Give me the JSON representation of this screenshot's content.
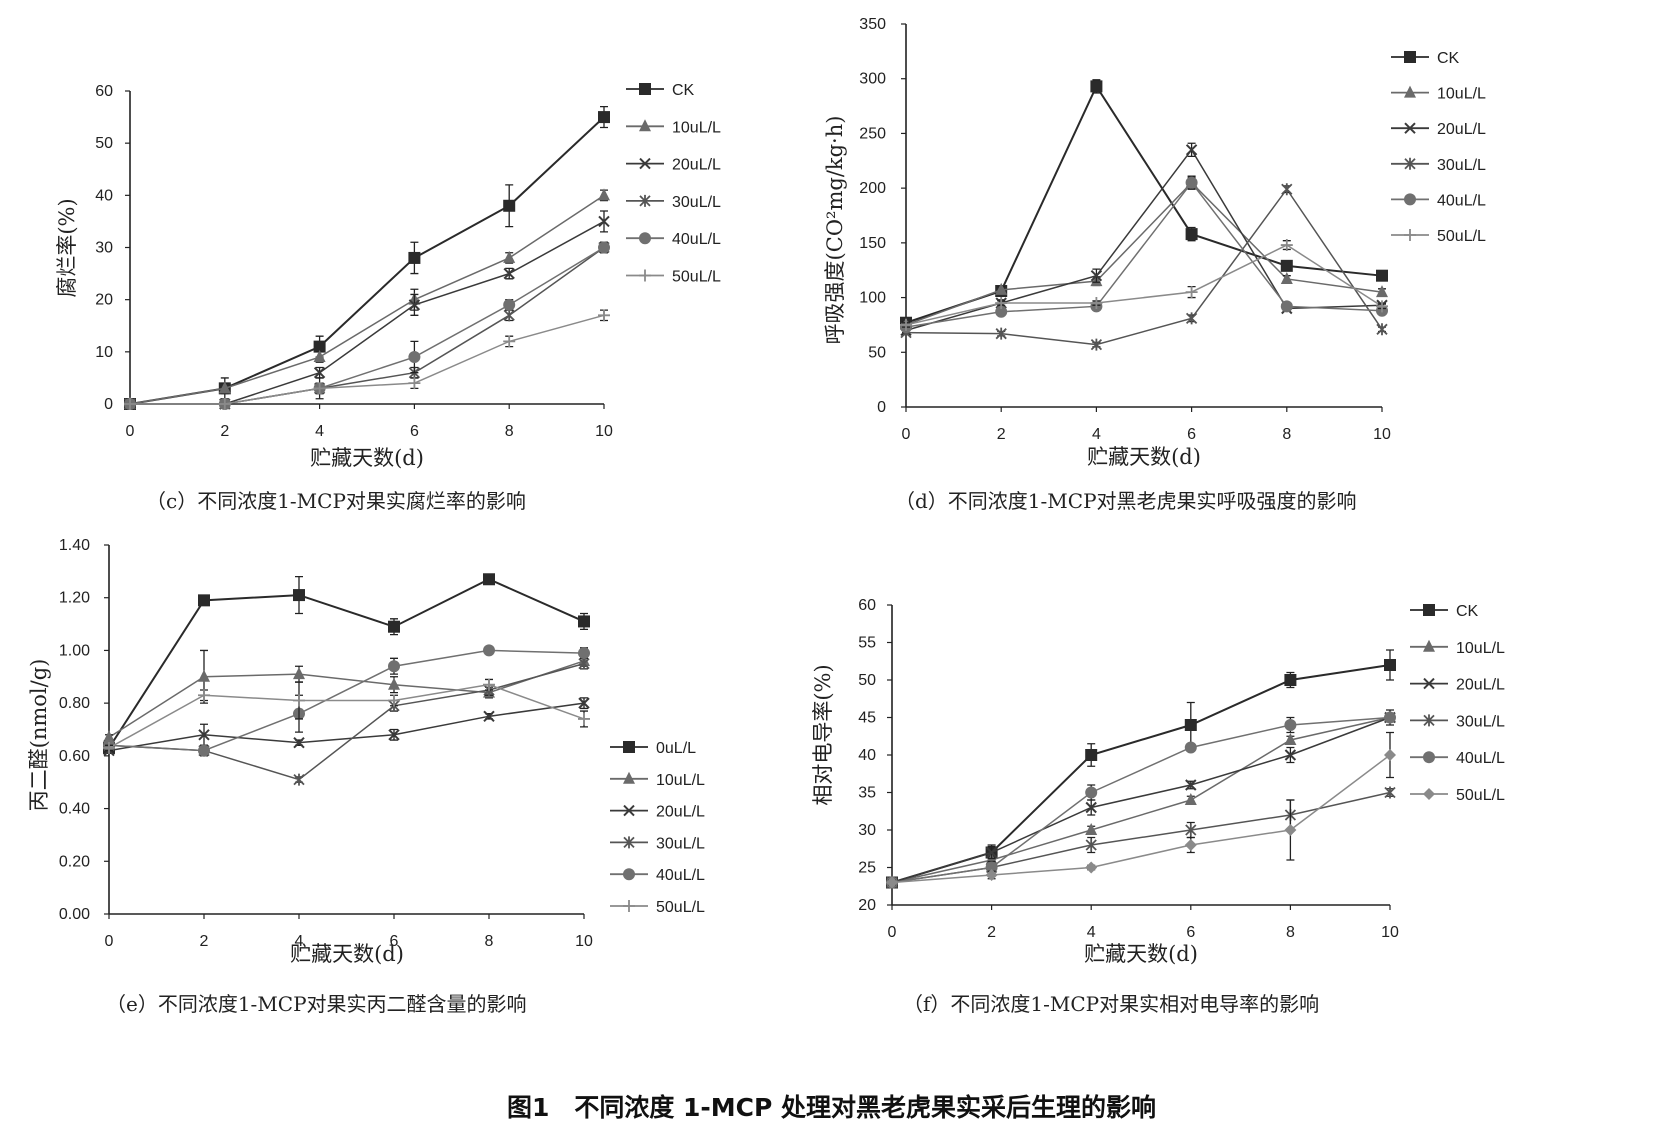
{
  "figure_caption": "图1　不同浓度 1-MCP 处理对黑老虎果实采后生理的影响",
  "panels": [
    {
      "id": "c",
      "caption": "（c）不同浓度1-MCP对果实腐烂率的影响"
    },
    {
      "id": "d",
      "caption": "（d）不同浓度1-MCP对黑老虎果实呼吸强度的影响"
    },
    {
      "id": "e",
      "caption": "（e）不同浓度1-MCP对果实丙二醛含量的影响"
    },
    {
      "id": "f",
      "caption": "（f）不同浓度1-MCP对果实相对电导率的影响"
    }
  ],
  "colors": {
    "CK": "#2a2a2a",
    "10uL/L": "#6a6a6a",
    "20uL/L": "#3a3a3a",
    "30uL/L": "#555555",
    "40uL/L": "#707070",
    "50uL/L": "#8a8a8a"
  },
  "chart_data": [
    {
      "id": "c",
      "type": "line",
      "xlabel": "贮藏天数(d)",
      "ylabel": "腐烂率(%)",
      "x": [
        0,
        2,
        4,
        6,
        8,
        10
      ],
      "xlim": [
        0,
        10
      ],
      "ylim": [
        0,
        60
      ],
      "xticks": [
        "0",
        "2",
        "4",
        "6",
        "8",
        "10"
      ],
      "yticks": [
        "0",
        "10",
        "20",
        "30",
        "40",
        "50",
        "60"
      ],
      "grid": false,
      "legend": "right",
      "series": [
        {
          "name": "CK",
          "marker": "square",
          "values": [
            0,
            3,
            11,
            28,
            38,
            55
          ],
          "err": [
            0,
            2,
            2,
            3,
            4,
            2
          ]
        },
        {
          "name": "10uL/L",
          "marker": "triangle",
          "values": [
            0,
            3,
            9,
            20,
            28,
            40
          ],
          "err": [
            0,
            1,
            1,
            2,
            1,
            1
          ]
        },
        {
          "name": "20uL/L",
          "marker": "x",
          "values": [
            0,
            0,
            6,
            19,
            25,
            35
          ],
          "err": [
            0,
            0,
            1,
            2,
            1,
            2
          ]
        },
        {
          "name": "30uL/L",
          "marker": "star",
          "values": [
            0,
            0,
            3,
            6,
            17,
            30
          ],
          "err": [
            0,
            0,
            1,
            1,
            1,
            1
          ]
        },
        {
          "name": "40uL/L",
          "marker": "circle",
          "values": [
            0,
            0,
            3,
            9,
            19,
            30
          ],
          "err": [
            0,
            0,
            1,
            3,
            1,
            1
          ]
        },
        {
          "name": "50uL/L",
          "marker": "plus",
          "values": [
            0,
            0,
            3,
            4,
            12,
            17
          ],
          "err": [
            0,
            0,
            2,
            1,
            1,
            1
          ]
        }
      ]
    },
    {
      "id": "d",
      "type": "line",
      "xlabel": "贮藏天数(d)",
      "ylabel": "呼吸强度(CO²mg/kg·h)",
      "x": [
        0,
        2,
        4,
        6,
        8,
        10
      ],
      "xlim": [
        0,
        10
      ],
      "ylim": [
        0,
        350
      ],
      "xticks": [
        "0",
        "2",
        "4",
        "6",
        "8",
        "10"
      ],
      "yticks": [
        "0",
        "50",
        "100",
        "150",
        "200",
        "250",
        "300",
        "350"
      ],
      "grid": false,
      "legend": "right",
      "series": [
        {
          "name": "CK",
          "marker": "square",
          "values": [
            77,
            106,
            293,
            158,
            129,
            120
          ],
          "err": [
            3,
            3,
            6,
            6,
            3,
            3
          ]
        },
        {
          "name": "10uL/L",
          "marker": "triangle",
          "values": [
            75,
            107,
            115,
            205,
            117,
            105
          ],
          "err": [
            3,
            3,
            4,
            5,
            3,
            3
          ]
        },
        {
          "name": "20uL/L",
          "marker": "x",
          "values": [
            70,
            95,
            120,
            235,
            90,
            93
          ],
          "err": [
            2,
            3,
            6,
            6,
            2,
            2
          ]
        },
        {
          "name": "30uL/L",
          "marker": "star",
          "values": [
            68,
            67,
            57,
            81,
            199,
            71
          ],
          "err": [
            2,
            2,
            2,
            3,
            3,
            2
          ]
        },
        {
          "name": "40uL/L",
          "marker": "circle",
          "values": [
            73,
            87,
            92,
            205,
            92,
            88
          ],
          "err": [
            2,
            2,
            2,
            6,
            2,
            2
          ]
        },
        {
          "name": "50uL/L",
          "marker": "plus",
          "values": [
            75,
            95,
            95,
            105,
            148,
            92
          ],
          "err": [
            2,
            2,
            2,
            5,
            4,
            2
          ]
        }
      ]
    },
    {
      "id": "e",
      "type": "line",
      "xlabel": "贮藏天数(d)",
      "ylabel": "丙二醛(nmol/g)",
      "x": [
        0,
        2,
        4,
        6,
        8,
        10
      ],
      "xlim": [
        0,
        10
      ],
      "ylim": [
        0,
        1.4
      ],
      "xticks": [
        "0",
        "2",
        "4",
        "6",
        "8",
        "10"
      ],
      "yticks": [
        "0.00",
        "0.20",
        "0.40",
        "0.60",
        "0.80",
        "1.00",
        "1.20",
        "1.40"
      ],
      "grid": false,
      "legend": "right",
      "series": [
        {
          "name": "0uL/L",
          "marker": "square",
          "values": [
            0.63,
            1.19,
            1.21,
            1.09,
            1.27,
            1.11
          ],
          "err": [
            0.01,
            0.01,
            0.07,
            0.03,
            0.01,
            0.03
          ]
        },
        {
          "name": "10uL/L",
          "marker": "triangle",
          "values": [
            0.67,
            0.9,
            0.91,
            0.87,
            0.84,
            0.96
          ],
          "err": [
            0.01,
            0.1,
            0.03,
            0.03,
            0.02,
            0.02
          ]
        },
        {
          "name": "20uL/L",
          "marker": "x",
          "values": [
            0.62,
            0.68,
            0.65,
            0.68,
            0.75,
            0.8
          ],
          "err": [
            0.01,
            0.04,
            0.01,
            0.02,
            0.01,
            0.02
          ]
        },
        {
          "name": "30uL/L",
          "marker": "star",
          "values": [
            0.64,
            0.62,
            0.51,
            0.79,
            0.85,
            0.95
          ],
          "err": [
            0.01,
            0.02,
            0.01,
            0.02,
            0.02,
            0.02
          ]
        },
        {
          "name": "40uL/L",
          "marker": "circle",
          "values": [
            0.64,
            0.62,
            0.76,
            0.94,
            1.0,
            0.99
          ],
          "err": [
            0.01,
            0.02,
            0.07,
            0.03,
            0.01,
            0.02
          ]
        },
        {
          "name": "50uL/L",
          "marker": "plus",
          "values": [
            0.63,
            0.83,
            0.81,
            0.81,
            0.87,
            0.74
          ],
          "err": [
            0.01,
            0.02,
            0.07,
            0.02,
            0.02,
            0.03
          ]
        }
      ]
    },
    {
      "id": "f",
      "type": "line",
      "xlabel": "贮藏天数(d)",
      "ylabel": "相对电导率(%)",
      "x": [
        0,
        2,
        4,
        6,
        8,
        10
      ],
      "xlim": [
        0,
        10
      ],
      "ylim": [
        20,
        60
      ],
      "xticks": [
        "0",
        "2",
        "4",
        "6",
        "8",
        "10"
      ],
      "yticks": [
        "20",
        "25",
        "30",
        "35",
        "40",
        "45",
        "50",
        "55",
        "60"
      ],
      "grid": false,
      "legend": "right",
      "series": [
        {
          "name": "CK",
          "marker": "square",
          "values": [
            23,
            27,
            40,
            44,
            50,
            52
          ],
          "err": [
            0.3,
            1,
            1.5,
            3,
            1,
            2
          ]
        },
        {
          "name": "10uL/L",
          "marker": "triangle",
          "values": [
            23,
            26,
            30,
            34,
            42,
            45
          ],
          "err": [
            0.3,
            0.5,
            0.5,
            0.5,
            0.5,
            0.5
          ]
        },
        {
          "name": "20uL/L",
          "marker": "x",
          "values": [
            23,
            27,
            33,
            36,
            40,
            45
          ],
          "err": [
            0.3,
            0.8,
            1,
            0.5,
            1,
            1
          ]
        },
        {
          "name": "30uL/L",
          "marker": "star",
          "values": [
            23,
            25,
            28,
            30,
            32,
            35
          ],
          "err": [
            0.3,
            0.5,
            1,
            1,
            2,
            0.5
          ]
        },
        {
          "name": "40uL/L",
          "marker": "circle",
          "values": [
            23,
            25,
            35,
            41,
            44,
            45
          ],
          "err": [
            0.3,
            0.8,
            1,
            0.5,
            1,
            0.5
          ]
        },
        {
          "name": "50uL/L",
          "marker": "diamond",
          "values": [
            23,
            24,
            25,
            28,
            30,
            40
          ],
          "err": [
            0.3,
            0.5,
            0.3,
            1,
            4,
            3
          ]
        }
      ]
    }
  ]
}
